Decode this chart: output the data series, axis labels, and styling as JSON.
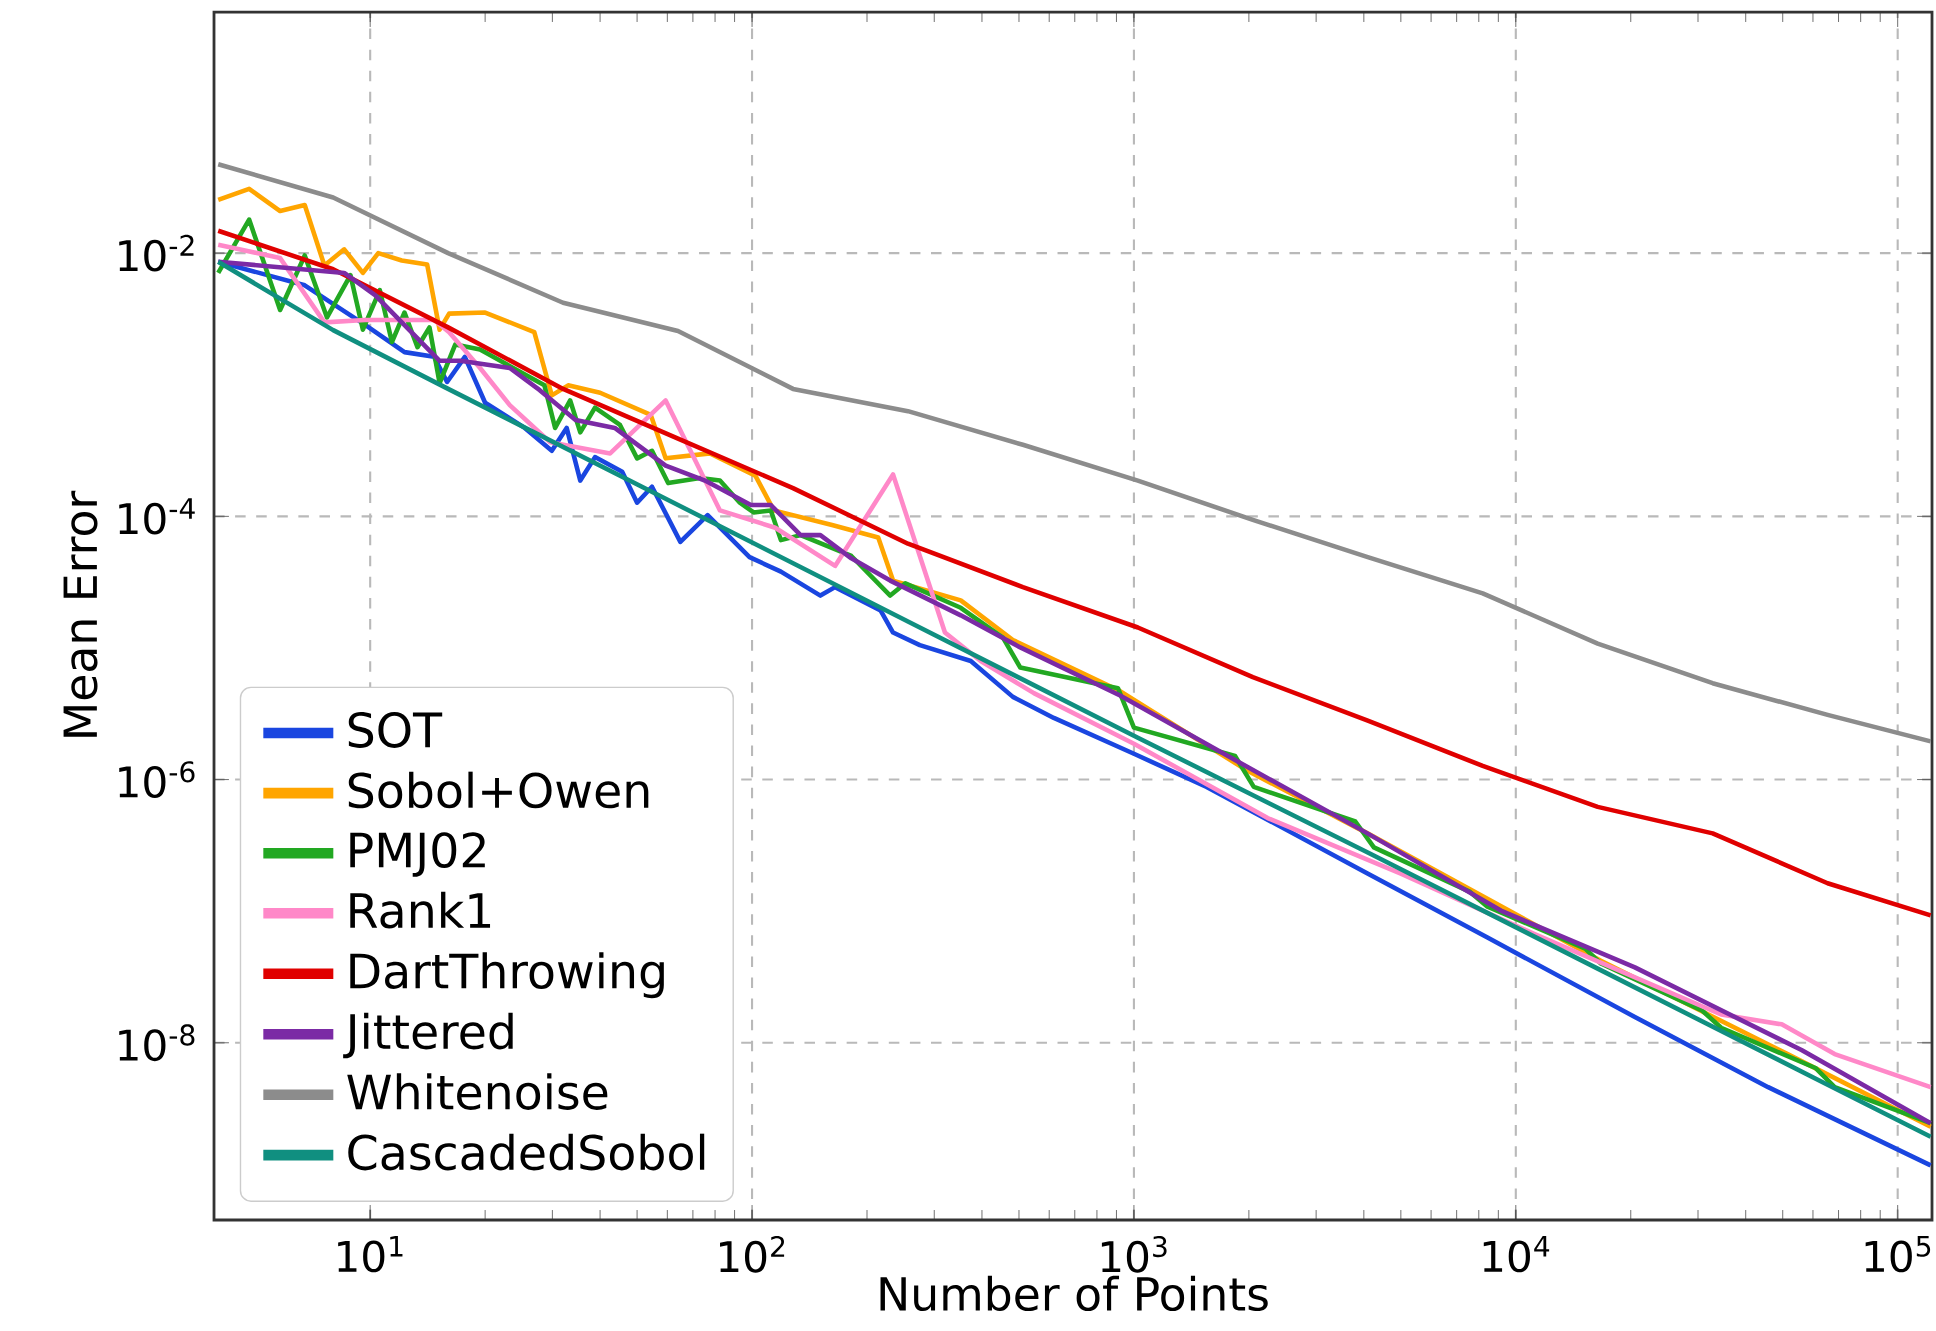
{
  "chart_data": {
    "type": "line",
    "xlabel": "Number of Points",
    "ylabel": "Mean Error",
    "log": "xy",
    "grid": true,
    "legend": "bottom left",
    "xlim": [
      3.9,
      123000
    ],
    "ylim": [
      4.5e-10,
      0.68
    ],
    "xticks": [
      {
        "value": 10,
        "label": "10$^{1}$"
      },
      {
        "value": 100,
        "label": "10$^{2}$"
      },
      {
        "value": 1000,
        "label": "10$^{3}$"
      },
      {
        "value": 10000,
        "label": "10$^{4}$"
      },
      {
        "value": 100000,
        "label": "10$^{5}$"
      }
    ],
    "yticks": [
      {
        "value": 1e-08,
        "label": "10$^{-8}$"
      },
      {
        "value": 1e-06,
        "label": "10$^{-6}$"
      },
      {
        "value": 0.0001,
        "label": "10$^{-4}$"
      },
      {
        "value": 0.01,
        "label": "10$^{-2}$"
      }
    ],
    "series": [
      {
        "name": "SOT",
        "color": "#1a46e0",
        "x": [
          4,
          6.74,
          9.7,
          12.3,
          14.7,
          15.9,
          17.7,
          20,
          25.4,
          29.9,
          32.7,
          35.5,
          38.8,
          45.7,
          50,
          54.7,
          64.9,
          76.5,
          98.5,
          119,
          151,
          165,
          217,
          234,
          275,
          374,
          482,
          617,
          1000,
          1550,
          4090,
          8430,
          20500,
          45800,
          122000
        ],
        "values": [
          0.0086,
          0.0057,
          0.00285,
          0.00177,
          0.00163,
          0.00105,
          0.00163,
          0.00073,
          0.00047,
          0.000315,
          0.00047,
          0.000187,
          0.000282,
          0.000218,
          0.000127,
          0.000168,
          6.4e-05,
          0.000102,
          4.9e-05,
          3.8e-05,
          2.5e-05,
          2.9e-05,
          1.93e-05,
          1.31e-05,
          1.05e-05,
          7.96e-06,
          4.25e-06,
          2.94e-06,
          1.57e-06,
          8.8e-07,
          1.93e-07,
          6.3e-08,
          1.57e-08,
          4.6e-09,
          1.17e-09
        ]
      },
      {
        "name": "Sobol+Owen",
        "color": "#ffa500",
        "x": [
          4,
          4.82,
          5.81,
          6.74,
          7.59,
          8.55,
          9.57,
          10.5,
          12.1,
          14.1,
          15.2,
          16.1,
          20,
          26.9,
          29.9,
          33,
          40,
          54.3,
          59.4,
          77.6,
          102,
          114,
          162,
          214,
          234,
          352,
          482,
          920,
          1990,
          4090,
          16700,
          51500,
          122000
        ],
        "values": [
          0.0254,
          0.0308,
          0.0209,
          0.0232,
          0.00805,
          0.0107,
          0.00708,
          0.01,
          0.0088,
          0.0082,
          0.00262,
          0.00347,
          0.00354,
          0.00251,
          0.00083,
          0.00099,
          0.00087,
          0.00059,
          0.000276,
          0.000301,
          0.000204,
          0.000111,
          8.6e-05,
          6.9e-05,
          3.25e-05,
          2.3e-05,
          1.15e-05,
          4.7e-06,
          1.16e-06,
          3.9e-07,
          4.2e-08,
          8.2e-09,
          2.3e-09
        ]
      },
      {
        "name": "PMJ02",
        "color": "#22a822",
        "x": [
          4,
          4.82,
          5.81,
          6.74,
          7.71,
          8.88,
          9.57,
          10.6,
          11.4,
          12.3,
          13.3,
          14.3,
          15.2,
          16.7,
          19.4,
          28.6,
          30.5,
          33.4,
          35.5,
          38.8,
          45.1,
          50,
          54.7,
          60.3,
          73.1,
          82.4,
          92.9,
          101,
          112,
          119,
          134,
          182,
          230,
          252,
          352,
          454,
          504,
          908,
          1000,
          1840,
          2060,
          3800,
          4250,
          7590,
          8430,
          15200,
          16700,
          30800,
          34500,
          61100,
          68400,
          122000
        ],
        "values": [
          0.00708,
          0.018,
          0.0037,
          0.0096,
          0.00325,
          0.0068,
          0.00262,
          0.00523,
          0.00211,
          0.00354,
          0.00193,
          0.00273,
          0.00103,
          0.00202,
          0.00185,
          0.00099,
          0.00047,
          0.00076,
          0.000435,
          0.00067,
          0.000495,
          0.000276,
          0.000315,
          0.000179,
          0.000196,
          0.000187,
          0.000127,
          0.000107,
          0.000111,
          6.6e-05,
          7.2e-05,
          5e-05,
          2.5e-05,
          3.1e-05,
          2.02e-05,
          1.2e-05,
          7.1e-06,
          4.95e-06,
          2.48e-06,
          1.51e-06,
          8.8e-07,
          4.8e-07,
          3.05e-07,
          1.4e-07,
          1.08e-07,
          5.2e-08,
          4e-08,
          1.75e-08,
          1.3e-08,
          6.4e-09,
          4.6e-09,
          2.45e-09
        ]
      },
      {
        "name": "Rank1",
        "color": "#ff88c8",
        "x": [
          4,
          5.81,
          7.59,
          9.7,
          14.7,
          16.1,
          19.4,
          23.2,
          29.6,
          42.5,
          59.4,
          82.4,
          115,
          165,
          234,
          320,
          397,
          547,
          1000,
          2240,
          5000,
          11200,
          34500,
          49700,
          68400,
          122000
        ],
        "values": [
          0.0116,
          0.00917,
          0.00298,
          0.00311,
          0.00311,
          0.00251,
          0.00134,
          0.0007,
          0.000366,
          0.000301,
          0.00076,
          0.000111,
          8.2e-05,
          4.2e-05,
          0.000208,
          1.31e-05,
          7.96e-06,
          4.54e-06,
          1.87e-06,
          5.1e-07,
          1.93e-07,
          6.7e-08,
          1.64e-08,
          1.38e-08,
          8.2e-09,
          4.6e-09
        ]
      },
      {
        "name": "DartThrowing",
        "color": "#e00000",
        "x": [
          4,
          8,
          16,
          32,
          64,
          128,
          256,
          512,
          1024,
          2048,
          4096,
          8192,
          16384,
          32768,
          65536,
          122000
        ],
        "values": [
          0.0148,
          0.00755,
          0.00273,
          0.00093,
          0.00039,
          0.000164,
          6.2e-05,
          2.9e-05,
          1.43e-05,
          6e-06,
          2.8e-06,
          1.27e-06,
          6.2e-07,
          3.9e-07,
          1.63e-07,
          9.3e-08
        ]
      },
      {
        "name": "Jittered",
        "color": "#7b2aa5",
        "x": [
          4,
          8.55,
          10.3,
          15.2,
          17.2,
          23.2,
          27.8,
          34.5,
          43.7,
          59.4,
          75.3,
          99.3,
          112,
          134,
          151,
          182,
          230,
          352,
          504,
          920,
          1990,
          4090,
          9140,
          20500,
          56000,
          122000
        ],
        "values": [
          0.0086,
          0.00708,
          0.0048,
          0.00152,
          0.00152,
          0.00134,
          0.00091,
          0.00054,
          0.00047,
          0.000243,
          0.000187,
          0.000122,
          0.000122,
          7.2e-05,
          7.2e-05,
          4.8e-05,
          3.25e-05,
          1.77e-05,
          1.01e-05,
          4.35e-06,
          1.24e-06,
          3.9e-07,
          1.01e-07,
          3.74e-08,
          8.8e-09,
          2.45e-09
        ]
      },
      {
        "name": "Whitenoise",
        "color": "#8c8c8c",
        "x": [
          4,
          8,
          16,
          32,
          64,
          128,
          256,
          512,
          1024,
          2048,
          4096,
          8192,
          16384,
          32768,
          65536,
          122000
        ],
        "values": [
          0.0474,
          0.0265,
          0.01,
          0.0042,
          0.00256,
          0.00093,
          0.00063,
          0.00035,
          0.000187,
          9.4e-05,
          4.9e-05,
          2.6e-05,
          1.08e-05,
          5.4e-06,
          3.1e-06,
          1.95e-06
        ]
      },
      {
        "name": "CascadedSobol",
        "color": "#108f80",
        "x": [
          4,
          8,
          16,
          64,
          256,
          1024,
          4096,
          16384,
          65536,
          122000
        ],
        "values": [
          0.0086,
          0.0026,
          0.00093,
          0.000122,
          1.59e-05,
          2.08e-06,
          2.79e-07,
          3.66e-08,
          4.8e-09,
          1.93e-09
        ]
      }
    ]
  }
}
